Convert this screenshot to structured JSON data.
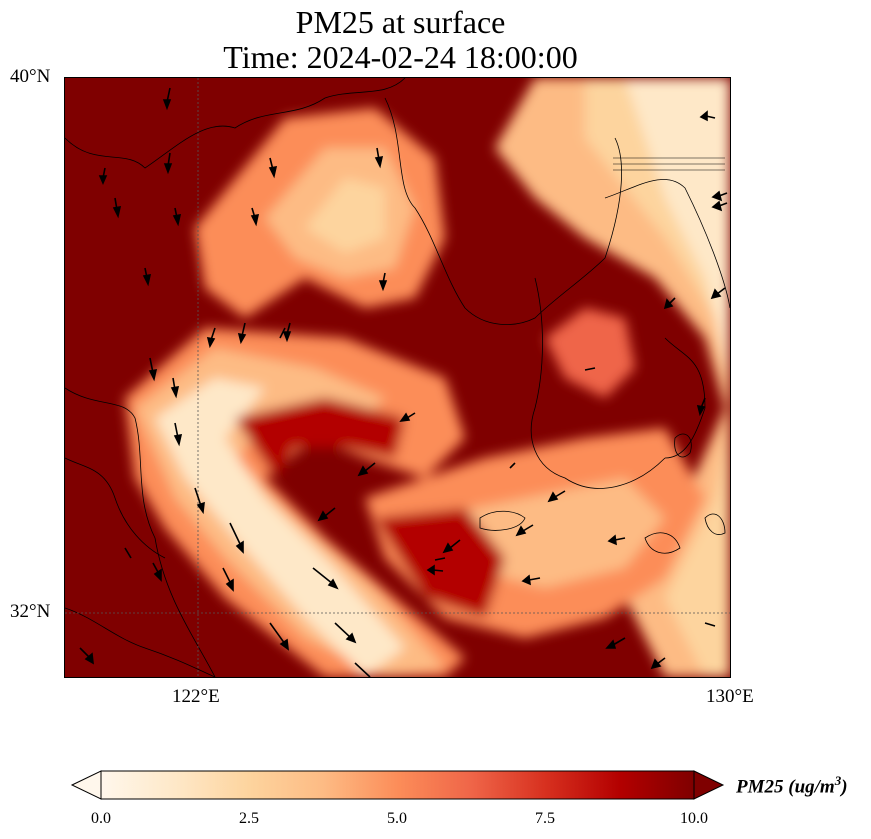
{
  "title": {
    "line1": "PM25 at surface",
    "line2": "Time: 2024-02-24 18:00:00"
  },
  "axes": {
    "lat_labels": [
      "40°N",
      "32°N"
    ],
    "lon_labels": [
      "122°E",
      "130°E"
    ]
  },
  "colorbar": {
    "label": "PM25 (ug/m",
    "label_sup": "3",
    "label_end": ")",
    "ticks": [
      "0.0",
      "2.5",
      "5.0",
      "7.5",
      "10.0"
    ],
    "range": [
      0,
      10
    ],
    "extend": "both",
    "colormap": "OrRd",
    "colors": [
      "#fff7ec",
      "#fee8c8",
      "#fdd49e",
      "#fdbb84",
      "#fc8d59",
      "#ef6548",
      "#d7301f",
      "#b30000",
      "#7f0000"
    ]
  },
  "map": {
    "extent_lon": [
      120,
      130
    ],
    "extent_lat": [
      31,
      40
    ],
    "gridlines": {
      "lon": [
        122
      ],
      "lat": [
        32
      ]
    },
    "coastline_color": "#000000"
  }
}
